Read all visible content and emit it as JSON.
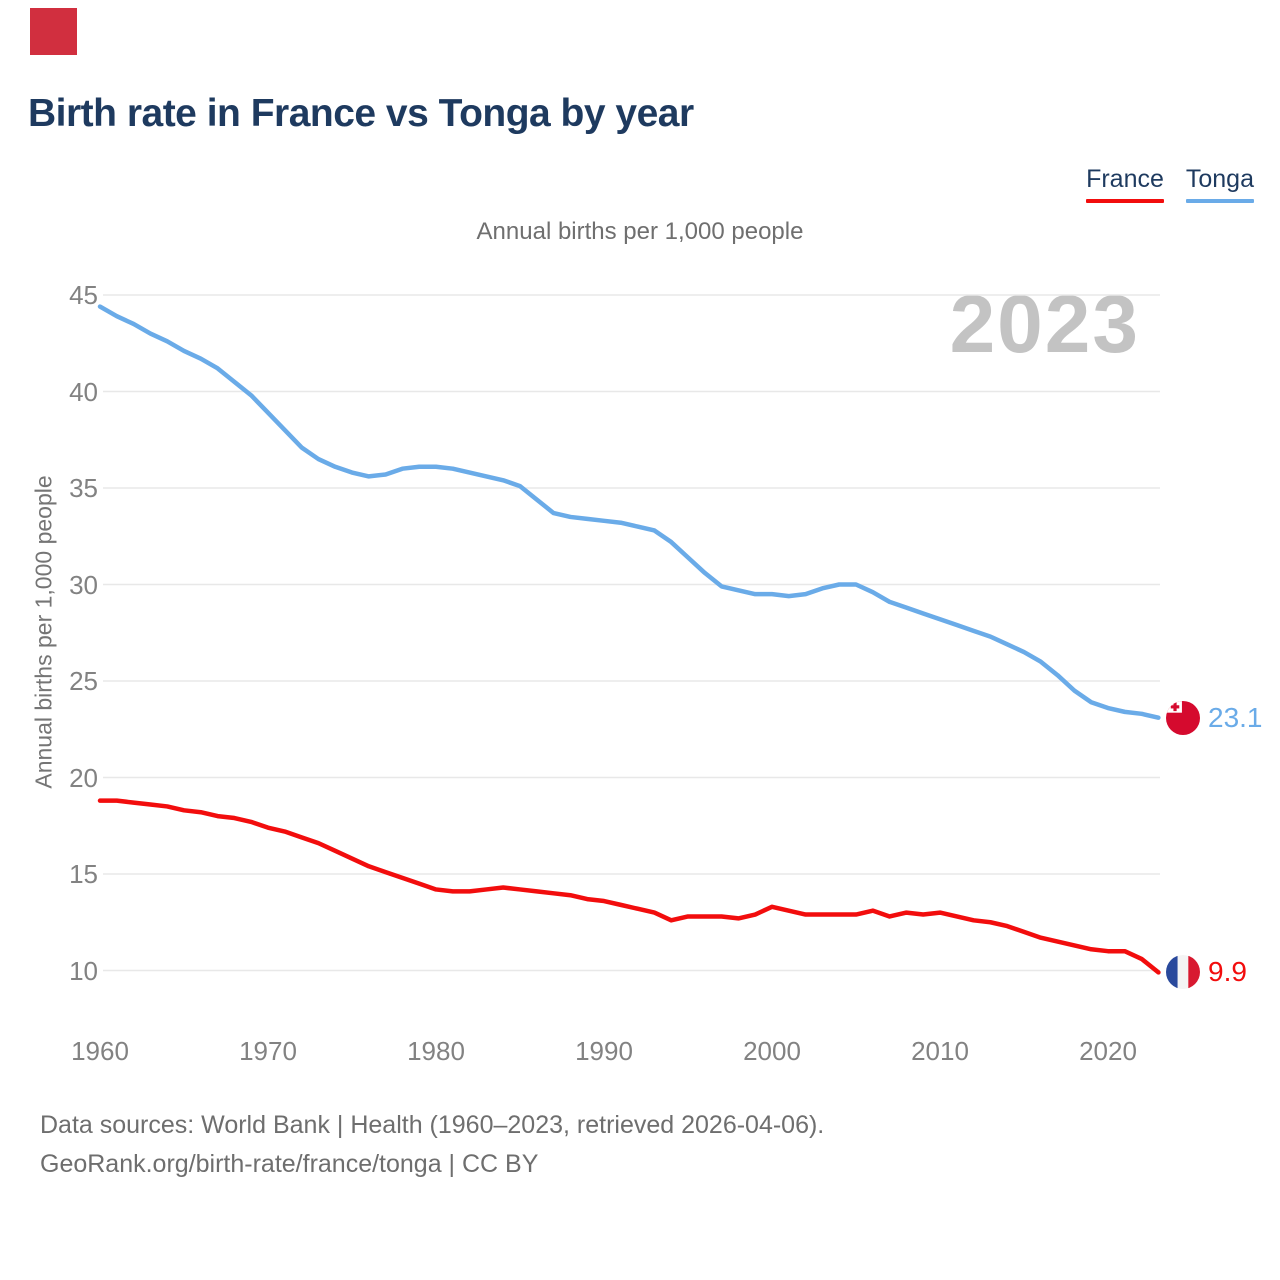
{
  "decor": {
    "corner_square_color": "#d12f3f"
  },
  "title": "Birth rate in France vs Tonga by year",
  "subtitle": "Annual births per 1,000 people",
  "watermark": "2023",
  "legend": {
    "items": [
      {
        "label": "France",
        "color": "#f20d0d"
      },
      {
        "label": "Tonga",
        "color": "#6aabe8"
      }
    ]
  },
  "y_axis": {
    "title": "Annual births per 1,000 people",
    "ticks": [
      45,
      40,
      35,
      30,
      25,
      20,
      15,
      10
    ]
  },
  "x_axis": {
    "ticks": [
      1960,
      1970,
      1980,
      1990,
      2000,
      2010,
      2020
    ]
  },
  "end_labels": [
    {
      "series": "Tonga",
      "value": 23.1,
      "color": "#6aabe8",
      "flag": "tonga"
    },
    {
      "series": "France",
      "value": 9.9,
      "color": "#f20d0d",
      "flag": "france"
    }
  ],
  "footer": {
    "line1": "Data sources: World Bank | Health (1960–2023, retrieved 2026-04-06).",
    "line2": "GeoRank.org/birth-rate/france/tonga | CC BY"
  },
  "chart_data": {
    "type": "line",
    "title": "Birth rate in France vs Tonga by year",
    "ylabel": "Annual births per 1,000 people",
    "ylim": [
      10,
      45
    ],
    "grid": "horizontal",
    "legend_position": "top-right",
    "years": [
      1960,
      1961,
      1962,
      1963,
      1964,
      1965,
      1966,
      1967,
      1968,
      1969,
      1970,
      1971,
      1972,
      1973,
      1974,
      1975,
      1976,
      1977,
      1978,
      1979,
      1980,
      1981,
      1982,
      1983,
      1984,
      1985,
      1986,
      1987,
      1988,
      1989,
      1990,
      1991,
      1992,
      1993,
      1994,
      1995,
      1996,
      1997,
      1998,
      1999,
      2000,
      2001,
      2002,
      2003,
      2004,
      2005,
      2006,
      2007,
      2008,
      2009,
      2010,
      2011,
      2012,
      2013,
      2014,
      2015,
      2016,
      2017,
      2018,
      2019,
      2020,
      2021,
      2022,
      2023
    ],
    "series": [
      {
        "name": "Tonga",
        "color": "#6aabe8",
        "values": [
          44.4,
          43.9,
          43.5,
          43.0,
          42.6,
          42.1,
          41.7,
          41.2,
          40.5,
          39.8,
          38.9,
          38.0,
          37.1,
          36.5,
          36.1,
          35.8,
          35.6,
          35.7,
          36.0,
          36.1,
          36.1,
          36.0,
          35.8,
          35.6,
          35.4,
          35.1,
          34.4,
          33.7,
          33.5,
          33.4,
          33.3,
          33.2,
          33.0,
          32.8,
          32.2,
          31.4,
          30.6,
          29.9,
          29.7,
          29.5,
          29.5,
          29.4,
          29.5,
          29.8,
          30.0,
          30.0,
          29.6,
          29.1,
          28.8,
          28.5,
          28.2,
          27.9,
          27.6,
          27.3,
          26.9,
          26.5,
          26.0,
          25.3,
          24.5,
          23.9,
          23.6,
          23.4,
          23.3,
          23.1
        ]
      },
      {
        "name": "France",
        "color": "#f20d0d",
        "values": [
          18.8,
          18.8,
          18.7,
          18.6,
          18.5,
          18.3,
          18.2,
          18.0,
          17.9,
          17.7,
          17.4,
          17.2,
          16.9,
          16.6,
          16.2,
          15.8,
          15.4,
          15.1,
          14.8,
          14.5,
          14.2,
          14.1,
          14.1,
          14.2,
          14.3,
          14.2,
          14.1,
          14.0,
          13.9,
          13.7,
          13.6,
          13.4,
          13.2,
          13.0,
          12.6,
          12.8,
          12.8,
          12.8,
          12.7,
          12.9,
          13.3,
          13.1,
          12.9,
          12.9,
          12.9,
          12.9,
          13.1,
          12.8,
          13.0,
          12.9,
          13.0,
          12.8,
          12.6,
          12.5,
          12.3,
          12.0,
          11.7,
          11.5,
          11.3,
          11.1,
          11.0,
          11.0,
          10.6,
          9.9
        ]
      }
    ]
  }
}
